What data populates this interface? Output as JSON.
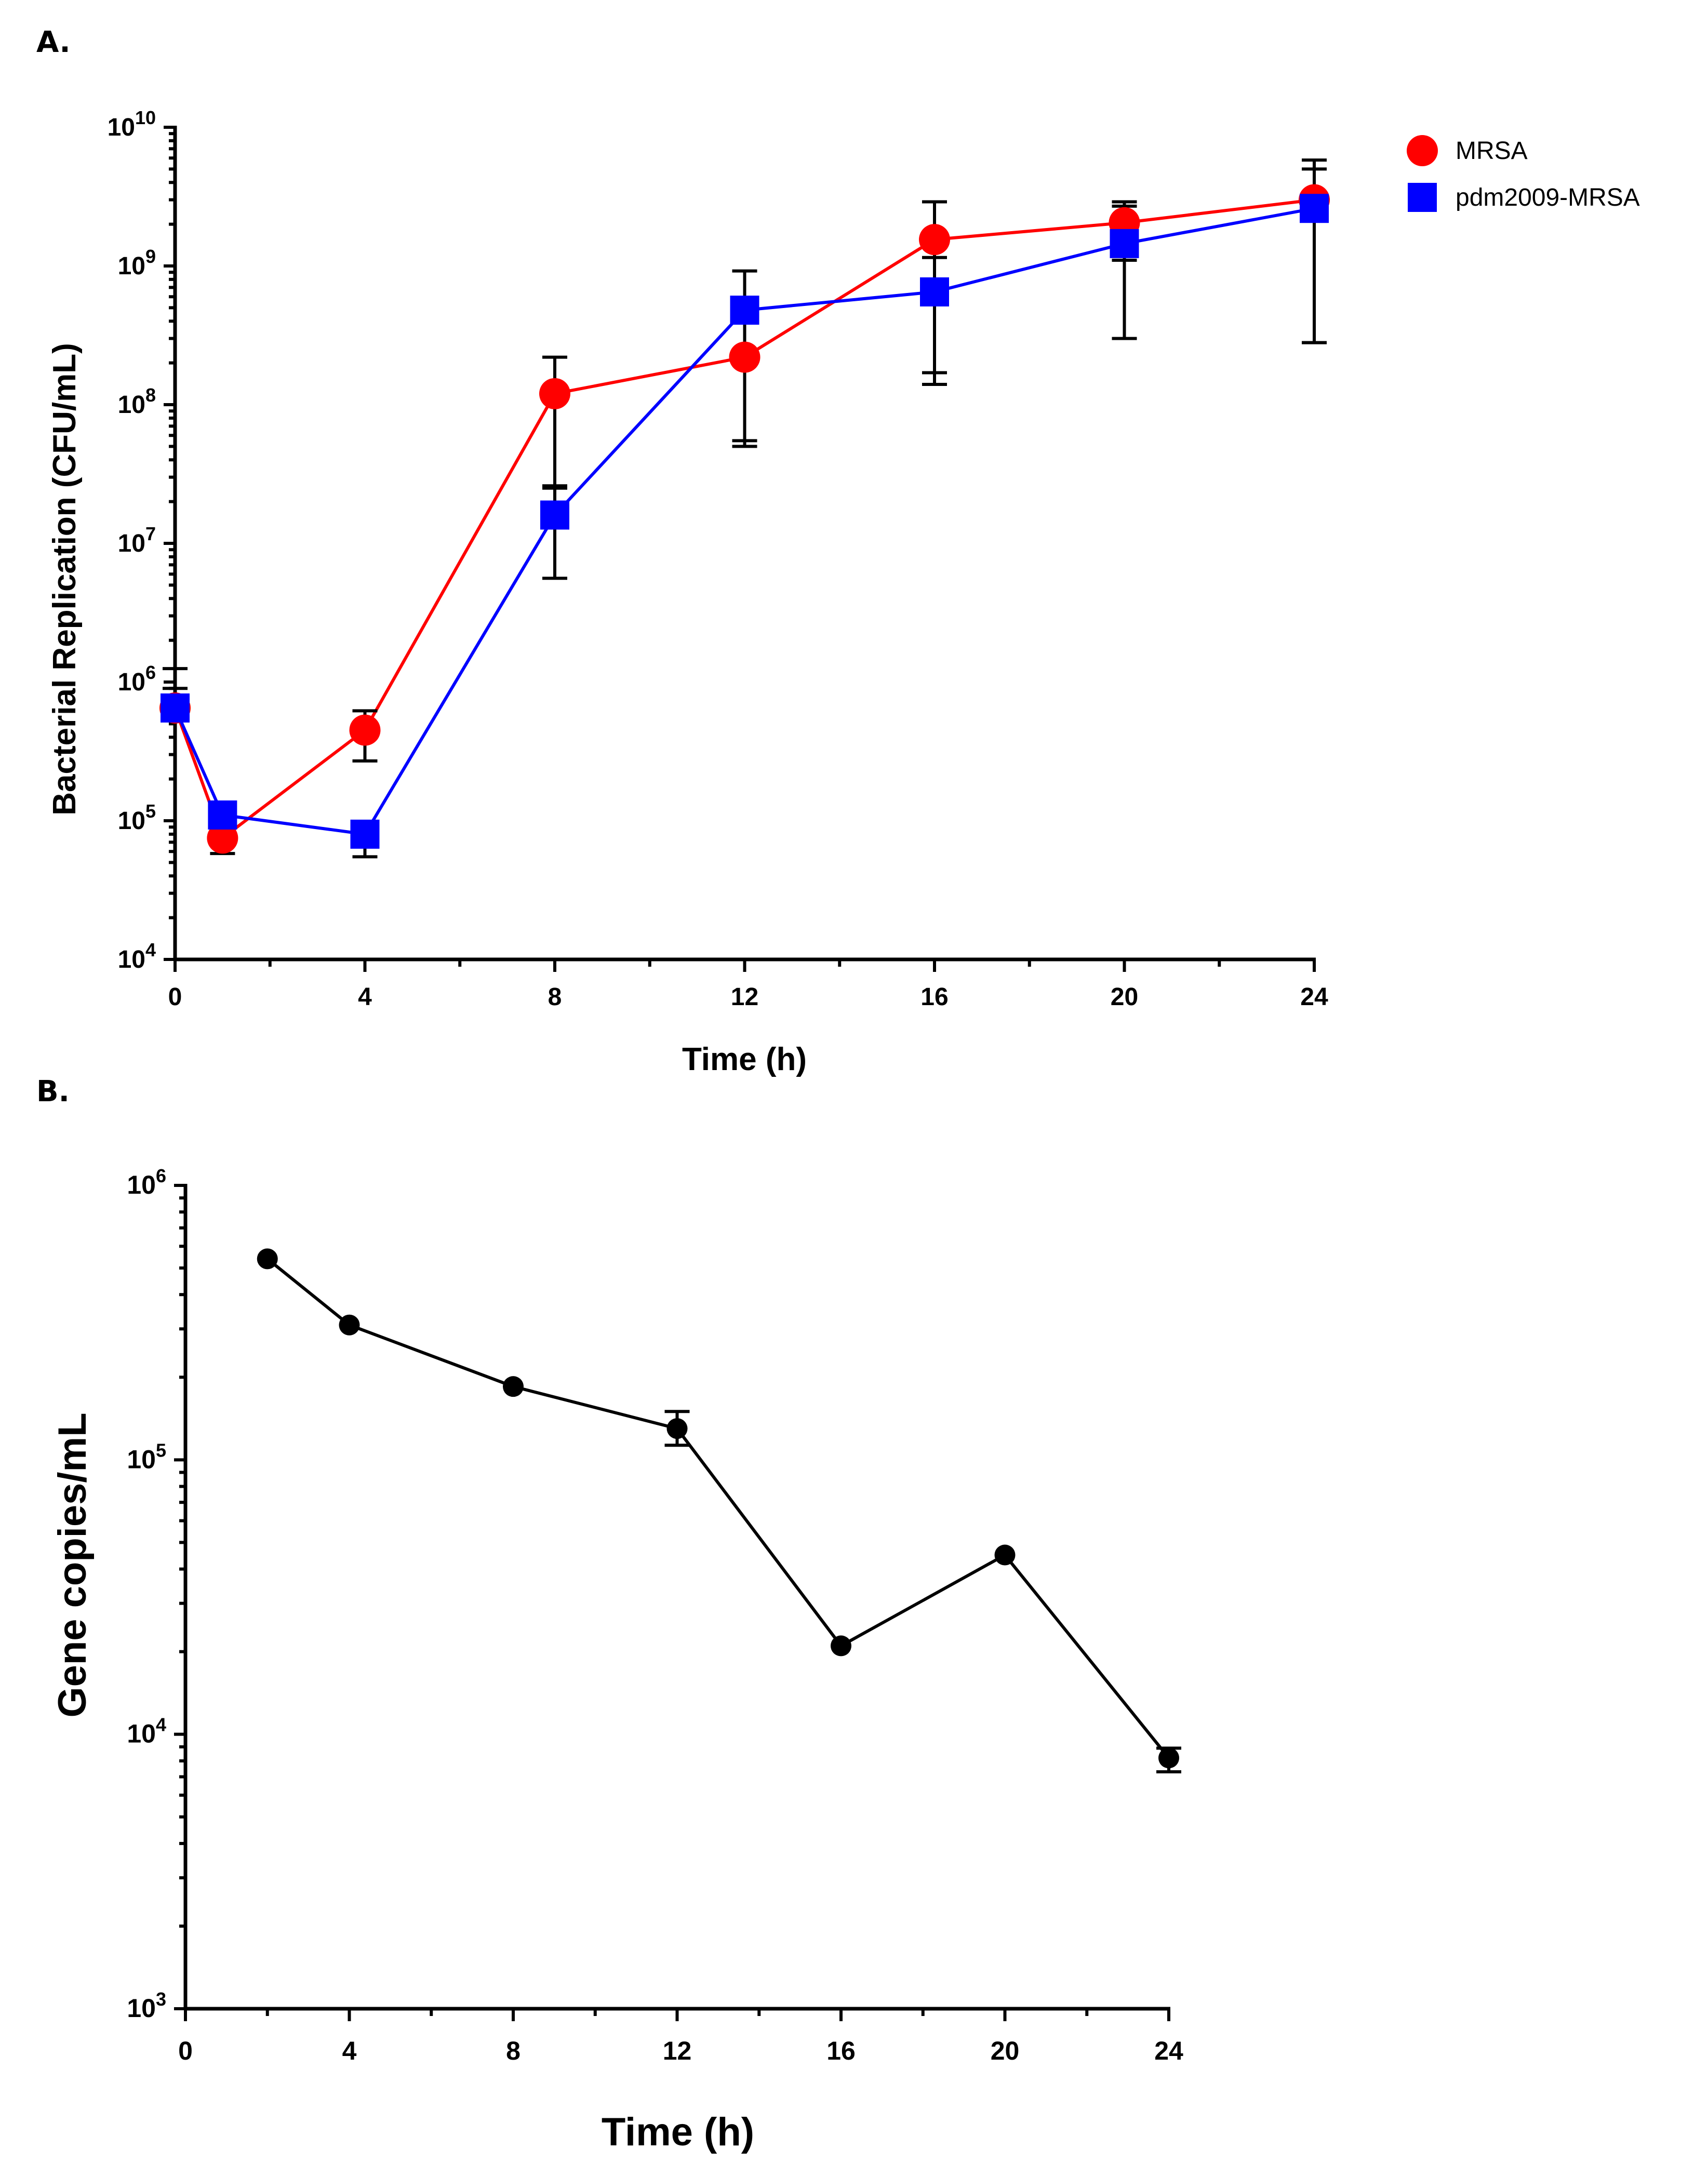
{
  "chart_data": [
    {
      "panel": "A.",
      "type": "line",
      "xlabel": "Time (h)",
      "ylabel": "Bacterial Replication (CFU/mL)",
      "yscale": "log",
      "ylim": [
        10000,
        10000000000
      ],
      "xlim": [
        0,
        24
      ],
      "xticks": [
        0,
        4,
        8,
        12,
        16,
        20,
        24
      ],
      "yticks": [
        {
          "value": 10000,
          "base": "10",
          "exp": "4"
        },
        {
          "value": 100000,
          "base": "10",
          "exp": "5"
        },
        {
          "value": 1000000,
          "base": "10",
          "exp": "6"
        },
        {
          "value": 10000000,
          "base": "10",
          "exp": "7"
        },
        {
          "value": 100000000,
          "base": "10",
          "exp": "8"
        },
        {
          "value": 1000000000,
          "base": "10",
          "exp": "9"
        },
        {
          "value": 10000000000,
          "base": "10",
          "exp": "10"
        }
      ],
      "legend_position": "top-right",
      "series": [
        {
          "name": "MRSA",
          "color": "#ff0000",
          "marker": "circle",
          "x": [
            0,
            1,
            4,
            8,
            12,
            16,
            20,
            24
          ],
          "y": [
            650000,
            75000,
            450000,
            120000000,
            220000000,
            1550000000,
            2050000000,
            3000000000
          ],
          "err_low": [
            null,
            58000,
            270000,
            25000000,
            55000000,
            170000000,
            1100000000,
            280000000
          ],
          "err_high": [
            1250000,
            null,
            620000,
            220000000,
            920000000,
            2900000000,
            2900000000,
            5000000000
          ]
        },
        {
          "name": "pdm2009-MRSA",
          "color": "#0000ff",
          "marker": "square",
          "x": [
            0,
            1,
            4,
            8,
            12,
            16,
            20,
            24
          ],
          "y": [
            650000,
            110000,
            80000,
            16000000,
            480000000,
            650000000,
            1450000000,
            2600000000
          ],
          "err_low": [
            null,
            null,
            55000,
            5600000,
            50000000,
            140000000,
            300000000,
            280000000
          ],
          "err_high": [
            900000,
            null,
            null,
            26000000,
            null,
            1150000000,
            2700000000,
            5800000000
          ]
        }
      ]
    },
    {
      "panel": "B.",
      "type": "line",
      "xlabel": "Time (h)",
      "ylabel": "Gene copies/mL",
      "yscale": "log",
      "ylim": [
        1000,
        1000000
      ],
      "xlim": [
        0,
        24
      ],
      "xticks": [
        0,
        4,
        8,
        12,
        16,
        20,
        24
      ],
      "yticks": [
        {
          "value": 1000,
          "base": "10",
          "exp": "3"
        },
        {
          "value": 10000,
          "base": "10",
          "exp": "4"
        },
        {
          "value": 100000,
          "base": "10",
          "exp": "5"
        },
        {
          "value": 1000000,
          "base": "10",
          "exp": "6"
        }
      ],
      "series": [
        {
          "name": "Gene copies",
          "color": "#000000",
          "marker": "circle",
          "x": [
            2,
            4,
            8,
            12,
            16,
            20,
            24
          ],
          "y": [
            540000,
            310000,
            185000,
            130000,
            21000,
            45000,
            8200
          ],
          "err_low": [
            null,
            null,
            null,
            113000,
            null,
            null,
            7300
          ],
          "err_high": [
            null,
            null,
            null,
            150000,
            null,
            null,
            8900
          ]
        }
      ]
    }
  ]
}
